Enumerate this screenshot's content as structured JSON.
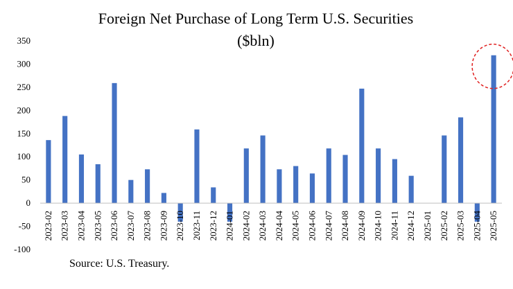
{
  "chart_data": {
    "type": "bar",
    "title_line1": "Foreign Net Purchase  of Long Term U.S. Securities",
    "title_line2": "($bln)",
    "xlabel": "",
    "ylabel": "",
    "ylim": [
      -100,
      350
    ],
    "yticks": [
      350,
      300,
      250,
      200,
      150,
      100,
      50,
      0,
      -50,
      -100
    ],
    "grid": false,
    "legend": "none",
    "bar_color": "#4472C4",
    "highlight_color": "#E02020",
    "highlight_category": "2025-05",
    "categories": [
      "2023-02",
      "2023-03",
      "2023-04",
      "2023-05",
      "2023-06",
      "2023-07",
      "2023-08",
      "2023-09",
      "2023-10",
      "2023-11",
      "2023-12",
      "2024-01",
      "2024-02",
      "2024-03",
      "2024-04",
      "2024-05",
      "2024-06",
      "2024-07",
      "2024-08",
      "2024-09",
      "2024-10",
      "2024-11",
      "2024-12",
      "2025-01",
      "2025-02",
      "2025-03",
      "2025-04",
      "2025-05"
    ],
    "values": [
      136,
      188,
      105,
      84,
      259,
      50,
      73,
      22,
      -40,
      159,
      34,
      -40,
      118,
      146,
      73,
      80,
      64,
      118,
      104,
      247,
      118,
      95,
      59,
      0,
      146,
      185,
      -40,
      319
    ]
  },
  "source": "Source: U.S. Treasury."
}
